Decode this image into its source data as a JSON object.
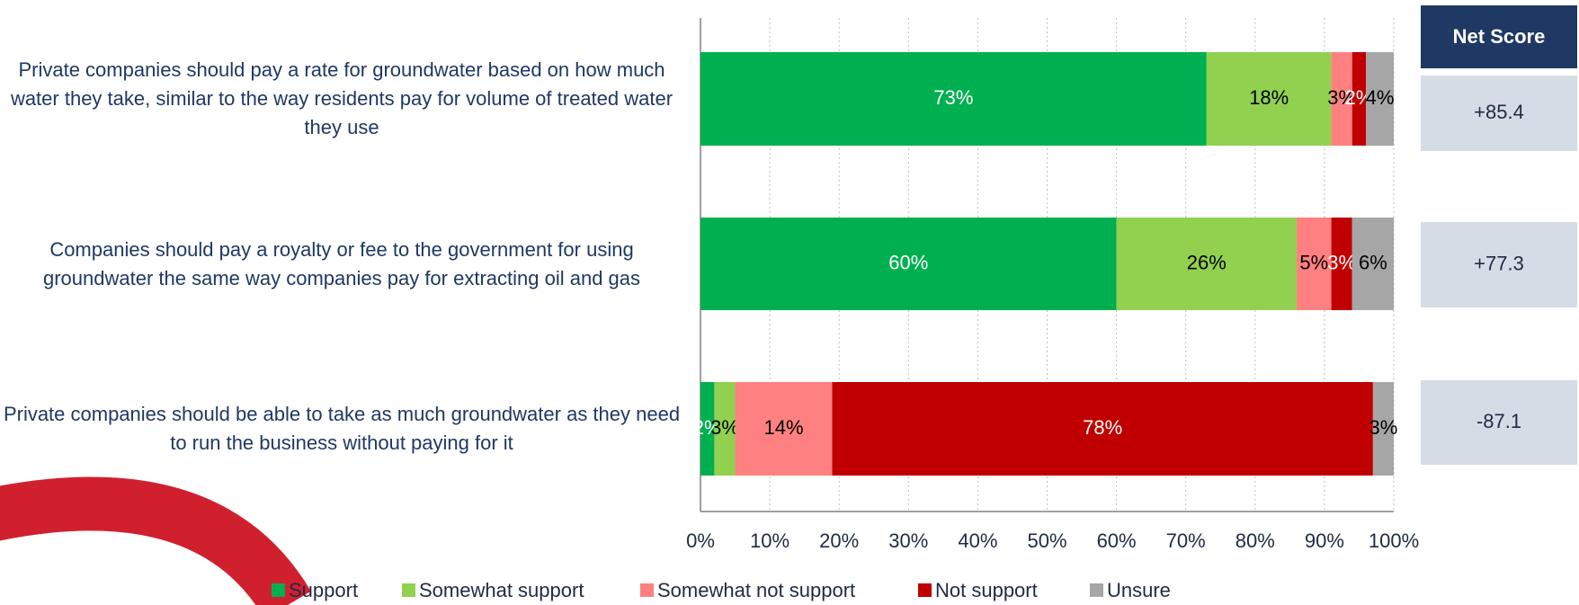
{
  "chart_data": {
    "type": "bar",
    "orientation": "horizontal",
    "stacked": true,
    "categories": [
      "Private companies should pay a rate for groundwater based on how much water they take, similar to the way residents pay for volume of treated water they use",
      "Companies should pay a royalty or fee to the government for using groundwater the same way companies pay for extracting oil and gas",
      "Private companies should be able to take as much groundwater as they need to run the business without paying for it"
    ],
    "series": [
      {
        "name": "Support",
        "color": "#00b050",
        "label_color": "#ffffff",
        "values": [
          73,
          60,
          2
        ],
        "value_labels": [
          "73%",
          "60%",
          "2%"
        ]
      },
      {
        "name": "Somewhat support",
        "color": "#92d050",
        "label_color": "#000000",
        "values": [
          18,
          26,
          3
        ],
        "value_labels": [
          "18%",
          "26%",
          "3%"
        ]
      },
      {
        "name": "Somewhat not support",
        "color": "#ff8080",
        "label_color": "#000000",
        "values": [
          3,
          5,
          14
        ],
        "value_labels": [
          "3%",
          "5%",
          "14%"
        ]
      },
      {
        "name": "Not support",
        "color": "#c00000",
        "label_color": "#ffffff",
        "values": [
          2,
          3,
          78
        ],
        "value_labels": [
          "2%",
          "3%",
          "78%"
        ]
      },
      {
        "name": "Unsure",
        "color": "#a6a6a6",
        "label_color": "#000000",
        "values": [
          4,
          6,
          3
        ],
        "value_labels": [
          "4%",
          "6%",
          "3%"
        ]
      }
    ],
    "xlim": [
      0,
      100
    ],
    "xticks": [
      {
        "value": 0,
        "label": "0%"
      },
      {
        "value": 10,
        "label": "10%"
      },
      {
        "value": 20,
        "label": "20%"
      },
      {
        "value": 30,
        "label": "30%"
      },
      {
        "value": 40,
        "label": "40%"
      },
      {
        "value": 50,
        "label": "50%"
      },
      {
        "value": 60,
        "label": "60%"
      },
      {
        "value": 70,
        "label": "70%"
      },
      {
        "value": 80,
        "label": "80%"
      },
      {
        "value": 90,
        "label": "90%"
      },
      {
        "value": 100,
        "label": "100%"
      }
    ],
    "grid": true,
    "legend": "bottom",
    "net_score": {
      "title": "Net Score",
      "color": "#d6dce5",
      "values": [
        85.4,
        77.3,
        -87.1
      ],
      "value_labels": [
        "+85.4",
        "+77.3",
        "-87.1"
      ]
    }
  }
}
